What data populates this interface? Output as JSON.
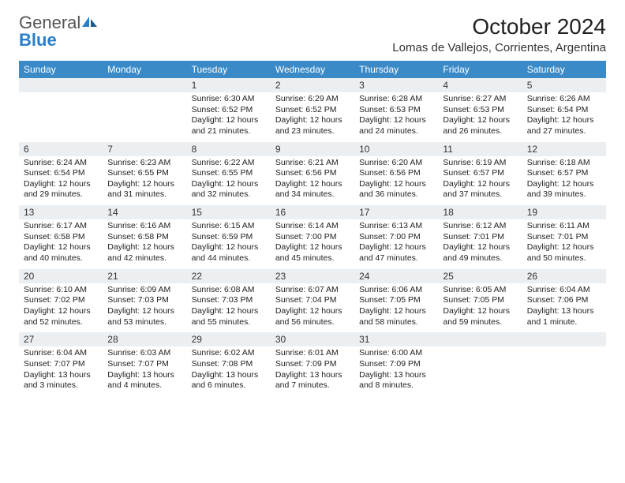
{
  "brand": {
    "name1": "General",
    "name2": "Blue"
  },
  "title": "October 2024",
  "location": "Lomas de Vallejos, Corrientes, Argentina",
  "colors": {
    "header_bg": "#3a8ac8",
    "daynum_bg": "#eceff1",
    "rule": "#3a6a96",
    "brand_blue": "#2a7ec8"
  },
  "day_names": [
    "Sunday",
    "Monday",
    "Tuesday",
    "Wednesday",
    "Thursday",
    "Friday",
    "Saturday"
  ],
  "first_weekday": 2,
  "days": [
    {
      "n": 1,
      "sunrise": "6:30 AM",
      "sunset": "6:52 PM",
      "daylight": "12 hours and 21 minutes."
    },
    {
      "n": 2,
      "sunrise": "6:29 AM",
      "sunset": "6:52 PM",
      "daylight": "12 hours and 23 minutes."
    },
    {
      "n": 3,
      "sunrise": "6:28 AM",
      "sunset": "6:53 PM",
      "daylight": "12 hours and 24 minutes."
    },
    {
      "n": 4,
      "sunrise": "6:27 AM",
      "sunset": "6:53 PM",
      "daylight": "12 hours and 26 minutes."
    },
    {
      "n": 5,
      "sunrise": "6:26 AM",
      "sunset": "6:54 PM",
      "daylight": "12 hours and 27 minutes."
    },
    {
      "n": 6,
      "sunrise": "6:24 AM",
      "sunset": "6:54 PM",
      "daylight": "12 hours and 29 minutes."
    },
    {
      "n": 7,
      "sunrise": "6:23 AM",
      "sunset": "6:55 PM",
      "daylight": "12 hours and 31 minutes."
    },
    {
      "n": 8,
      "sunrise": "6:22 AM",
      "sunset": "6:55 PM",
      "daylight": "12 hours and 32 minutes."
    },
    {
      "n": 9,
      "sunrise": "6:21 AM",
      "sunset": "6:56 PM",
      "daylight": "12 hours and 34 minutes."
    },
    {
      "n": 10,
      "sunrise": "6:20 AM",
      "sunset": "6:56 PM",
      "daylight": "12 hours and 36 minutes."
    },
    {
      "n": 11,
      "sunrise": "6:19 AM",
      "sunset": "6:57 PM",
      "daylight": "12 hours and 37 minutes."
    },
    {
      "n": 12,
      "sunrise": "6:18 AM",
      "sunset": "6:57 PM",
      "daylight": "12 hours and 39 minutes."
    },
    {
      "n": 13,
      "sunrise": "6:17 AM",
      "sunset": "6:58 PM",
      "daylight": "12 hours and 40 minutes."
    },
    {
      "n": 14,
      "sunrise": "6:16 AM",
      "sunset": "6:58 PM",
      "daylight": "12 hours and 42 minutes."
    },
    {
      "n": 15,
      "sunrise": "6:15 AM",
      "sunset": "6:59 PM",
      "daylight": "12 hours and 44 minutes."
    },
    {
      "n": 16,
      "sunrise": "6:14 AM",
      "sunset": "7:00 PM",
      "daylight": "12 hours and 45 minutes."
    },
    {
      "n": 17,
      "sunrise": "6:13 AM",
      "sunset": "7:00 PM",
      "daylight": "12 hours and 47 minutes."
    },
    {
      "n": 18,
      "sunrise": "6:12 AM",
      "sunset": "7:01 PM",
      "daylight": "12 hours and 49 minutes."
    },
    {
      "n": 19,
      "sunrise": "6:11 AM",
      "sunset": "7:01 PM",
      "daylight": "12 hours and 50 minutes."
    },
    {
      "n": 20,
      "sunrise": "6:10 AM",
      "sunset": "7:02 PM",
      "daylight": "12 hours and 52 minutes."
    },
    {
      "n": 21,
      "sunrise": "6:09 AM",
      "sunset": "7:03 PM",
      "daylight": "12 hours and 53 minutes."
    },
    {
      "n": 22,
      "sunrise": "6:08 AM",
      "sunset": "7:03 PM",
      "daylight": "12 hours and 55 minutes."
    },
    {
      "n": 23,
      "sunrise": "6:07 AM",
      "sunset": "7:04 PM",
      "daylight": "12 hours and 56 minutes."
    },
    {
      "n": 24,
      "sunrise": "6:06 AM",
      "sunset": "7:05 PM",
      "daylight": "12 hours and 58 minutes."
    },
    {
      "n": 25,
      "sunrise": "6:05 AM",
      "sunset": "7:05 PM",
      "daylight": "12 hours and 59 minutes."
    },
    {
      "n": 26,
      "sunrise": "6:04 AM",
      "sunset": "7:06 PM",
      "daylight": "13 hours and 1 minute."
    },
    {
      "n": 27,
      "sunrise": "6:04 AM",
      "sunset": "7:07 PM",
      "daylight": "13 hours and 3 minutes."
    },
    {
      "n": 28,
      "sunrise": "6:03 AM",
      "sunset": "7:07 PM",
      "daylight": "13 hours and 4 minutes."
    },
    {
      "n": 29,
      "sunrise": "6:02 AM",
      "sunset": "7:08 PM",
      "daylight": "13 hours and 6 minutes."
    },
    {
      "n": 30,
      "sunrise": "6:01 AM",
      "sunset": "7:09 PM",
      "daylight": "13 hours and 7 minutes."
    },
    {
      "n": 31,
      "sunrise": "6:00 AM",
      "sunset": "7:09 PM",
      "daylight": "13 hours and 8 minutes."
    }
  ],
  "labels": {
    "sunrise": "Sunrise:",
    "sunset": "Sunset:",
    "daylight": "Daylight:"
  }
}
